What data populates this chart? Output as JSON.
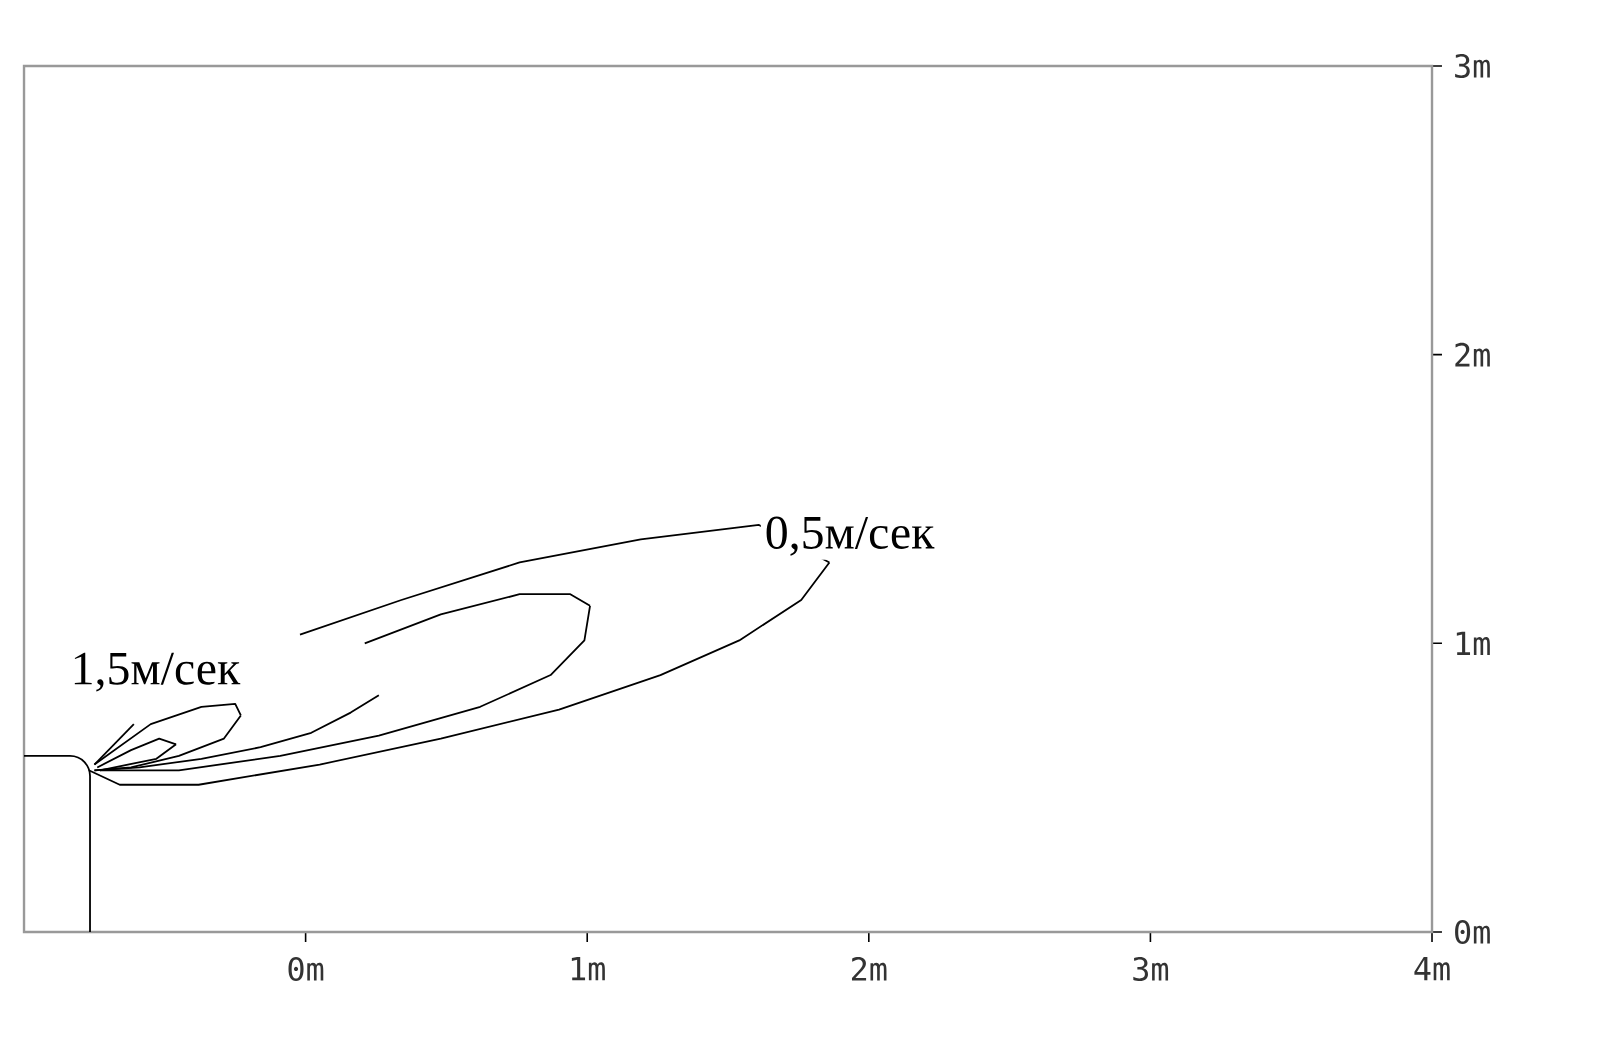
{
  "chart_data": {
    "type": "line",
    "xlim": [
      -1,
      4
    ],
    "ylim": [
      0,
      3
    ],
    "xticks": [
      {
        "value": 0,
        "label": "0m"
      },
      {
        "value": 1,
        "label": "1m"
      },
      {
        "value": 2,
        "label": "2m"
      },
      {
        "value": 3,
        "label": "3m"
      },
      {
        "value": 4,
        "label": "4m"
      }
    ],
    "yticks": [
      {
        "value": 0,
        "label": "0m"
      },
      {
        "value": 1,
        "label": "1m"
      },
      {
        "value": 2,
        "label": "2m"
      },
      {
        "value": 3,
        "label": "3m"
      }
    ],
    "marker": "none",
    "line_style": "solid",
    "series": [
      {
        "color": "#000000",
        "x": [
          -0.02,
          0.34,
          0.76,
          1.19,
          1.61,
          1.86
        ],
        "values": [
          1.03,
          1.15,
          1.28,
          1.36,
          1.41,
          1.28
        ]
      },
      {
        "color": "#000000",
        "x": [
          -0.77,
          -0.66,
          -0.38,
          0.05,
          0.48,
          0.9,
          1.26,
          1.54,
          1.76,
          1.86
        ],
        "values": [
          0.56,
          0.51,
          0.51,
          0.58,
          0.67,
          0.77,
          0.89,
          1.01,
          1.15,
          1.28
        ]
      },
      {
        "color": "#000000",
        "x": [
          0.21,
          0.48,
          0.76,
          0.94,
          1.01
        ],
        "values": [
          1.0,
          1.1,
          1.17,
          1.17,
          1.13
        ]
      },
      {
        "color": "#000000",
        "x": [
          -0.73,
          -0.45,
          -0.09,
          0.26,
          0.62,
          0.87,
          0.99,
          1.01
        ],
        "values": [
          0.56,
          0.56,
          0.61,
          0.68,
          0.78,
          0.89,
          1.01,
          1.13
        ]
      },
      {
        "color": "#000000",
        "x": [
          -0.75,
          -0.61
        ],
        "values": [
          0.58,
          0.72
        ]
      },
      {
        "color": "#000000",
        "x": [
          -0.75,
          -0.59,
          -0.37,
          -0.16,
          0.02,
          0.16,
          0.26
        ],
        "values": [
          0.56,
          0.57,
          0.6,
          0.64,
          0.69,
          0.76,
          0.82
        ]
      },
      {
        "color": "#000000",
        "x": [
          -0.75,
          -0.55,
          -0.37,
          -0.25,
          -0.23
        ],
        "values": [
          0.58,
          0.72,
          0.78,
          0.79,
          0.75
        ]
      },
      {
        "color": "#000000",
        "x": [
          -0.75,
          -0.62,
          -0.45,
          -0.29,
          -0.23
        ],
        "values": [
          0.56,
          0.57,
          0.61,
          0.67,
          0.75
        ]
      },
      {
        "color": "#000000",
        "x": [
          -0.74,
          -0.62,
          -0.52,
          -0.46
        ],
        "values": [
          0.57,
          0.63,
          0.67,
          0.65
        ]
      },
      {
        "color": "#000000",
        "x": [
          -0.73,
          -0.53,
          -0.46
        ],
        "values": [
          0.56,
          0.6,
          0.65
        ]
      }
    ],
    "annotations": [
      "0,5м/сек",
      "1,5м/сек"
    ]
  }
}
